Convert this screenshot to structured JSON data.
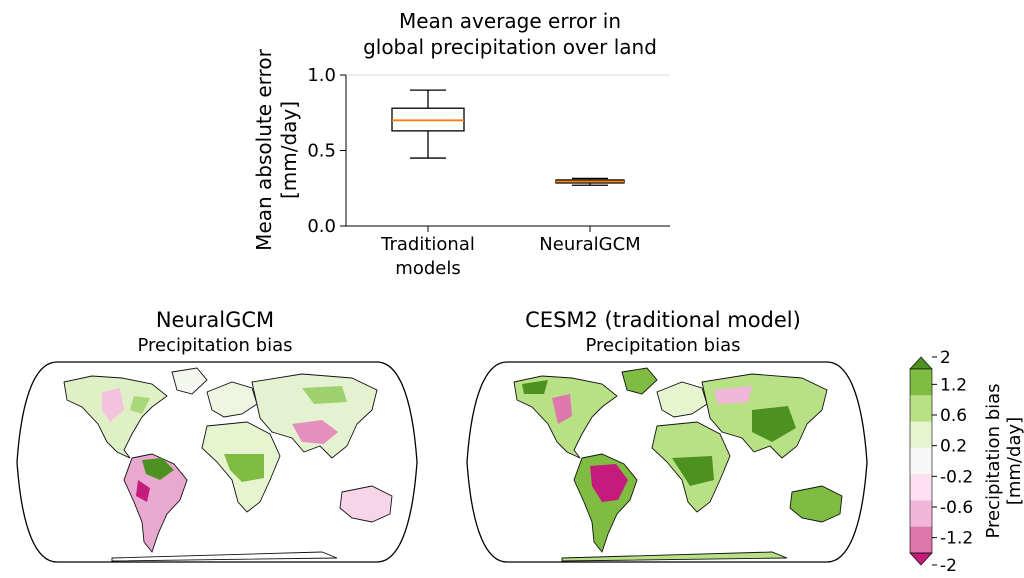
{
  "chart_data": [
    {
      "type": "box",
      "title_lines": [
        "Mean average error in",
        "global precipitation over land"
      ],
      "ylabel_lines": [
        "Mean absolute error",
        "[mm/day]"
      ],
      "ylim": [
        0,
        1.0
      ],
      "yticks": [
        0.0,
        0.5,
        1.0
      ],
      "ytick_labels": [
        "0.0",
        "0.5",
        "1.0"
      ],
      "grid": false,
      "median_color": "#ff7f0e",
      "categories": [
        {
          "label_lines": [
            "Traditional",
            "models"
          ],
          "whisker_low": 0.45,
          "q1": 0.63,
          "median": 0.7,
          "q3": 0.78,
          "whisker_high": 0.9
        },
        {
          "label_lines": [
            "NeuralGCM"
          ],
          "whisker_low": 0.27,
          "q1": 0.285,
          "median": 0.295,
          "q3": 0.305,
          "whisker_high": 0.315
        }
      ]
    },
    {
      "type": "map",
      "title": "NeuralGCM",
      "subtitle": "Precipitation bias",
      "projection": "Robinson",
      "variable": "Precipitation bias [mm/day]"
    },
    {
      "type": "map",
      "title": "CESM2 (traditional model)",
      "subtitle": "Precipitation bias",
      "projection": "Robinson",
      "variable": "Precipitation bias [mm/day]"
    },
    {
      "type": "colorbar",
      "label_lines": [
        "Precipitation bias",
        "[mm/day]"
      ],
      "tick_labels": [
        "-2",
        "-1.2",
        "-0.6",
        "-0.2",
        "0.2",
        "0.6",
        "1.2",
        "2"
      ],
      "extend": "both",
      "colors": [
        "#c51b7d",
        "#de77ae",
        "#f1b6da",
        "#fde0ef",
        "#f7f7f7",
        "#e6f5d0",
        "#b8e186",
        "#7fbc41",
        "#4d9221"
      ]
    }
  ]
}
